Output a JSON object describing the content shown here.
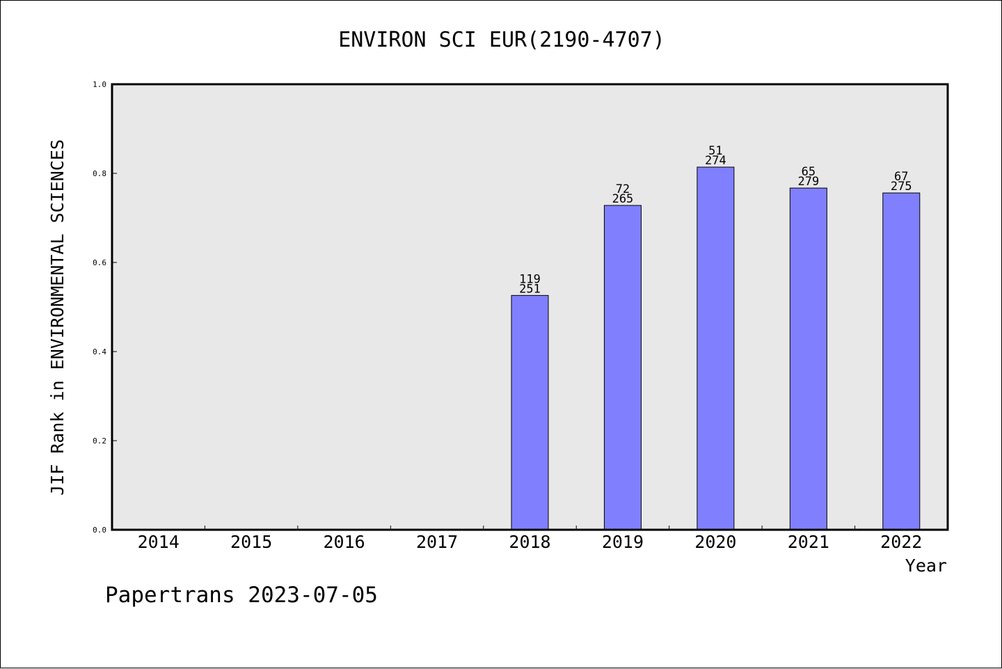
{
  "chart_data": {
    "type": "bar",
    "title": "ENVIRON SCI EUR(2190-4707)",
    "xlabel": "Year",
    "ylabel": "JIF Rank in ENVIRONMENTAL SCIENCES",
    "ylim": [
      0.0,
      1.0
    ],
    "yticks": [
      "0.0",
      "0.2",
      "0.4",
      "0.6",
      "0.8",
      "1.0"
    ],
    "ytick_values": [
      0.0,
      0.2,
      0.4,
      0.6,
      0.8,
      1.0
    ],
    "categories": [
      "2014",
      "2015",
      "2016",
      "2017",
      "2018",
      "2019",
      "2020",
      "2021",
      "2022"
    ],
    "values": [
      null,
      null,
      null,
      null,
      0.526,
      0.728,
      0.814,
      0.767,
      0.756
    ],
    "rank_labels": [
      "",
      "",
      "",
      "",
      "119",
      "72",
      "51",
      "65",
      "67"
    ],
    "total_labels": [
      "",
      "",
      "",
      "",
      "251",
      "265",
      "274",
      "279",
      "275"
    ],
    "grid": false,
    "bar_color": "#8080ff",
    "plot_background": "#e8e8e8"
  },
  "footer": {
    "credit": "Papertrans 2023-07-05"
  }
}
